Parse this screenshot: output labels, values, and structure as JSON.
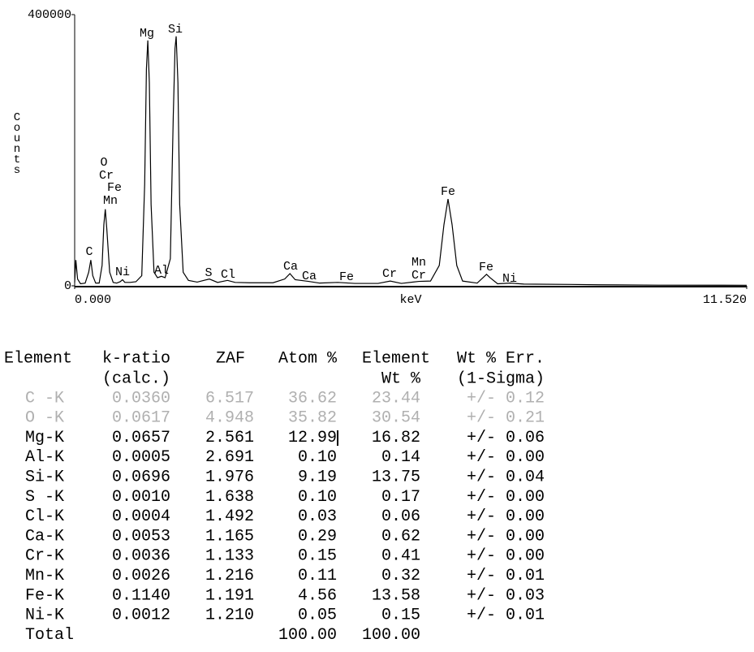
{
  "chart_data": {
    "type": "line",
    "y_label": "Counts",
    "x_label": "keV",
    "xlim": [
      0,
      11.52
    ],
    "ylim": [
      0,
      400000
    ],
    "xticks": [
      {
        "value": 0,
        "label": "0.000"
      },
      {
        "value": 11.52,
        "label": "11.520"
      }
    ],
    "yticks": [
      0,
      400000
    ],
    "color": "#000000",
    "x": [
      0.0,
      0.02,
      0.05,
      0.1,
      0.18,
      0.24,
      0.277,
      0.31,
      0.36,
      0.42,
      0.47,
      0.5,
      0.525,
      0.55,
      0.6,
      0.66,
      0.72,
      0.78,
      0.82,
      0.86,
      0.95,
      1.05,
      1.15,
      1.2,
      1.23,
      1.254,
      1.28,
      1.31,
      1.36,
      1.42,
      1.487,
      1.55,
      1.64,
      1.69,
      1.72,
      1.74,
      1.77,
      1.8,
      1.86,
      1.95,
      2.1,
      2.31,
      2.45,
      2.62,
      2.75,
      3.0,
      3.4,
      3.6,
      3.69,
      3.78,
      4.01,
      4.2,
      4.51,
      4.8,
      5.2,
      5.41,
      5.6,
      5.9,
      6.1,
      6.25,
      6.33,
      6.4,
      6.47,
      6.55,
      6.65,
      6.9,
      7.0,
      7.06,
      7.12,
      7.25,
      7.47,
      7.7,
      8.5,
      9.0,
      10.0,
      11.52
    ],
    "values": [
      5000,
      38000,
      10000,
      3000,
      4000,
      20000,
      38000,
      15000,
      4000,
      4000,
      30000,
      90000,
      113000,
      85000,
      20000,
      5000,
      4000,
      6000,
      9000,
      5000,
      5000,
      6000,
      15000,
      150000,
      320000,
      362000,
      300000,
      120000,
      20000,
      12000,
      14000,
      12000,
      40000,
      250000,
      350000,
      368000,
      300000,
      120000,
      20000,
      8000,
      5500,
      10000,
      5000,
      8000,
      5000,
      4500,
      4500,
      10000,
      18000,
      9000,
      6500,
      4000,
      5000,
      3500,
      3500,
      7000,
      3500,
      6500,
      7000,
      30000,
      90000,
      128000,
      90000,
      30000,
      7000,
      4000,
      12000,
      17000,
      12000,
      3000,
      4000,
      2500,
      2000,
      1500,
      1000,
      800
    ],
    "annotations": [
      "C",
      "O",
      "Cr",
      "Fe",
      "Mn",
      "Ni",
      "Mg",
      "Si",
      "Al",
      "S",
      "Cl",
      "Ca",
      "Ca",
      "Fe",
      "Cr",
      "Mn",
      "Cr",
      "Fe",
      "Fe",
      "Ni"
    ]
  },
  "table": {
    "header": [
      [
        "Element",
        "k-ratio",
        "ZAF",
        "Atom %",
        "Element",
        "Wt % Err."
      ],
      [
        "(calc.)",
        "Wt %",
        "(1-Sigma)"
      ]
    ],
    "rows": [
      [
        "C -K",
        "0.0360",
        "6.517",
        "36.62",
        "23.44",
        "+/- 0.12"
      ],
      [
        "O -K",
        "0.0617",
        "4.948",
        "35.82",
        "30.54",
        "+/- 0.21"
      ],
      [
        "Mg-K",
        "0.0657",
        "2.561",
        "12.99",
        "16.82",
        "+/- 0.06"
      ],
      [
        "Al-K",
        "0.0005",
        "2.691",
        "0.10",
        "0.14",
        "+/- 0.00"
      ],
      [
        "Si-K",
        "0.0696",
        "1.976",
        "9.19",
        "13.75",
        "+/- 0.04"
      ],
      [
        "S -K",
        "0.0010",
        "1.638",
        "0.10",
        "0.17",
        "+/- 0.00"
      ],
      [
        "Cl-K",
        "0.0004",
        "1.492",
        "0.03",
        "0.06",
        "+/- 0.00"
      ],
      [
        "Ca-K",
        "0.0053",
        "1.165",
        "0.29",
        "0.62",
        "+/- 0.00"
      ],
      [
        "Cr-K",
        "0.0036",
        "1.133",
        "0.15",
        "0.41",
        "+/- 0.00"
      ],
      [
        "Mn-K",
        "0.0026",
        "1.216",
        "0.11",
        "0.32",
        "+/- 0.01"
      ],
      [
        "Fe-K",
        "0.1140",
        "1.191",
        "4.56",
        "13.58",
        "+/- 0.03"
      ],
      [
        "Ni-K",
        "0.0012",
        "1.210",
        "0.05",
        "0.15",
        "+/- 0.01"
      ]
    ],
    "dimmed_rows": [
      0,
      1
    ],
    "total": [
      "Total",
      "100.00",
      "100.00"
    ]
  }
}
